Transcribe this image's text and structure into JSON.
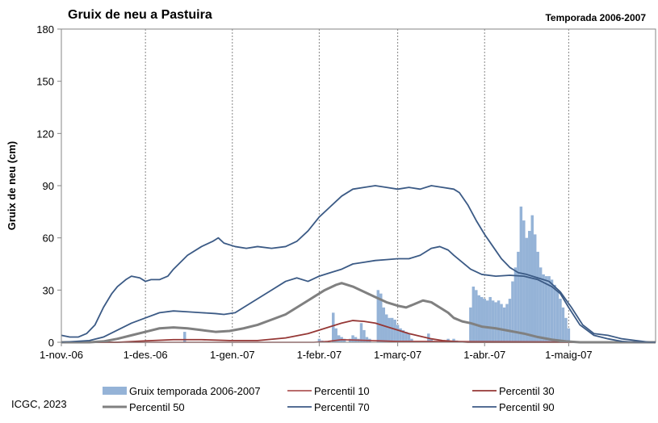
{
  "chart_data": {
    "type": "bar",
    "title": "Gruix de neu a Pastuira",
    "subtitle": "Temporada 2006-2007",
    "xlabel": "",
    "ylabel": "Gruix de neu (cm)",
    "ylim": [
      0,
      180
    ],
    "yticks": [
      "0",
      "30",
      "60",
      "90",
      "120",
      "150",
      "180"
    ],
    "x_days": 212,
    "x_ticks": [
      {
        "day": 0,
        "label": "1-nov.-06"
      },
      {
        "day": 30,
        "label": "1-des.-06"
      },
      {
        "day": 61,
        "label": "1-gen.-07"
      },
      {
        "day": 92,
        "label": "1-febr.-07"
      },
      {
        "day": 120,
        "label": "1-març-07"
      },
      {
        "day": 151,
        "label": "1-abr.-07"
      },
      {
        "day": 181,
        "label": "1-maig-07"
      }
    ],
    "grid": "vertical dotted",
    "legend_position": "bottom",
    "credit": "ICGC, 2023",
    "bars": {
      "name": "Gruix temporada 2006-2007",
      "color": "#95B3D7",
      "points": [
        [
          44,
          6
        ],
        [
          92,
          2
        ],
        [
          93,
          1
        ],
        [
          97,
          17
        ],
        [
          98,
          8
        ],
        [
          99,
          4
        ],
        [
          100,
          3
        ],
        [
          101,
          2
        ],
        [
          103,
          2
        ],
        [
          104,
          4
        ],
        [
          105,
          3
        ],
        [
          106,
          2
        ],
        [
          107,
          11
        ],
        [
          108,
          7
        ],
        [
          109,
          3
        ],
        [
          110,
          2
        ],
        [
          113,
          30
        ],
        [
          114,
          28
        ],
        [
          115,
          20
        ],
        [
          116,
          16
        ],
        [
          117,
          14
        ],
        [
          118,
          14
        ],
        [
          119,
          13
        ],
        [
          120,
          10
        ],
        [
          121,
          8
        ],
        [
          122,
          7
        ],
        [
          123,
          6
        ],
        [
          124,
          5
        ],
        [
          125,
          2
        ],
        [
          131,
          5
        ],
        [
          132,
          2
        ],
        [
          138,
          2
        ],
        [
          140,
          2
        ],
        [
          141,
          1
        ],
        [
          146,
          20
        ],
        [
          147,
          32
        ],
        [
          148,
          30
        ],
        [
          149,
          27
        ],
        [
          150,
          26
        ],
        [
          151,
          25
        ],
        [
          152,
          24
        ],
        [
          153,
          26
        ],
        [
          154,
          24
        ],
        [
          155,
          23
        ],
        [
          156,
          24
        ],
        [
          157,
          22
        ],
        [
          158,
          20
        ],
        [
          159,
          22
        ],
        [
          160,
          25
        ],
        [
          161,
          35
        ],
        [
          162,
          43
        ],
        [
          163,
          52
        ],
        [
          164,
          78
        ],
        [
          165,
          70
        ],
        [
          166,
          60
        ],
        [
          167,
          64
        ],
        [
          168,
          73
        ],
        [
          169,
          62
        ],
        [
          170,
          52
        ],
        [
          171,
          43
        ],
        [
          172,
          39
        ],
        [
          173,
          38
        ],
        [
          174,
          38
        ],
        [
          175,
          36
        ],
        [
          176,
          33
        ],
        [
          177,
          30
        ],
        [
          178,
          25
        ],
        [
          179,
          20
        ],
        [
          180,
          14
        ],
        [
          181,
          8
        ]
      ]
    },
    "series": [
      {
        "name": "Percentil 10",
        "color": "#A23B3B",
        "width": 1.6,
        "points": [
          [
            0,
            0
          ],
          [
            90,
            0
          ],
          [
            95,
            0.5
          ],
          [
            100,
            1.5
          ],
          [
            110,
            1
          ],
          [
            120,
            0.5
          ],
          [
            130,
            0.5
          ],
          [
            212,
            0
          ]
        ]
      },
      {
        "name": "Percentil 30",
        "color": "#953735",
        "width": 1.8,
        "points": [
          [
            0,
            0
          ],
          [
            20,
            0
          ],
          [
            30,
            0.8
          ],
          [
            40,
            1.5
          ],
          [
            50,
            1.5
          ],
          [
            60,
            1
          ],
          [
            70,
            1
          ],
          [
            80,
            2.5
          ],
          [
            88,
            5
          ],
          [
            94,
            8
          ],
          [
            100,
            11
          ],
          [
            104,
            12.5
          ],
          [
            108,
            12
          ],
          [
            112,
            11
          ],
          [
            116,
            9
          ],
          [
            120,
            7
          ],
          [
            124,
            5
          ],
          [
            128,
            3.5
          ],
          [
            132,
            2
          ],
          [
            136,
            1
          ],
          [
            140,
            0.5
          ],
          [
            145,
            0
          ],
          [
            212,
            0
          ]
        ]
      },
      {
        "name": "Percentil 50",
        "color": "#808080",
        "width": 3,
        "points": [
          [
            0,
            0
          ],
          [
            10,
            0
          ],
          [
            15,
            0.5
          ],
          [
            20,
            2
          ],
          [
            25,
            4
          ],
          [
            30,
            6
          ],
          [
            35,
            8
          ],
          [
            40,
            8.5
          ],
          [
            45,
            8
          ],
          [
            50,
            7
          ],
          [
            55,
            6
          ],
          [
            60,
            6.5
          ],
          [
            65,
            8
          ],
          [
            70,
            10
          ],
          [
            75,
            13
          ],
          [
            80,
            16
          ],
          [
            85,
            21
          ],
          [
            90,
            26
          ],
          [
            94,
            30
          ],
          [
            98,
            33
          ],
          [
            100,
            34
          ],
          [
            104,
            32
          ],
          [
            108,
            29
          ],
          [
            112,
            26
          ],
          [
            116,
            23
          ],
          [
            120,
            21
          ],
          [
            123,
            20
          ],
          [
            126,
            22
          ],
          [
            129,
            24
          ],
          [
            132,
            23
          ],
          [
            135,
            20
          ],
          [
            138,
            17
          ],
          [
            140,
            14
          ],
          [
            143,
            12
          ],
          [
            146,
            11
          ],
          [
            150,
            9
          ],
          [
            155,
            8
          ],
          [
            160,
            6.5
          ],
          [
            165,
            5
          ],
          [
            170,
            3
          ],
          [
            175,
            1.5
          ],
          [
            180,
            0.5
          ],
          [
            185,
            0
          ],
          [
            212,
            0
          ]
        ]
      },
      {
        "name": "Percentil 70",
        "color": "#3B5A85",
        "width": 1.8,
        "points": [
          [
            0,
            0
          ],
          [
            10,
            1
          ],
          [
            15,
            3
          ],
          [
            20,
            7
          ],
          [
            25,
            11
          ],
          [
            30,
            14
          ],
          [
            35,
            17
          ],
          [
            40,
            18
          ],
          [
            45,
            17.5
          ],
          [
            50,
            17
          ],
          [
            55,
            16.5
          ],
          [
            58,
            16
          ],
          [
            62,
            17
          ],
          [
            65,
            20
          ],
          [
            70,
            25
          ],
          [
            75,
            30
          ],
          [
            80,
            35
          ],
          [
            84,
            37
          ],
          [
            88,
            35
          ],
          [
            92,
            38
          ],
          [
            96,
            40
          ],
          [
            100,
            42
          ],
          [
            104,
            45
          ],
          [
            108,
            46
          ],
          [
            112,
            47
          ],
          [
            116,
            47.5
          ],
          [
            120,
            48
          ],
          [
            124,
            48
          ],
          [
            128,
            50
          ],
          [
            132,
            54
          ],
          [
            135,
            55
          ],
          [
            138,
            53
          ],
          [
            140,
            50
          ],
          [
            143,
            46
          ],
          [
            146,
            42
          ],
          [
            150,
            39
          ],
          [
            155,
            38
          ],
          [
            160,
            38.5
          ],
          [
            165,
            38
          ],
          [
            170,
            36
          ],
          [
            175,
            32
          ],
          [
            178,
            28
          ],
          [
            181,
            20
          ],
          [
            185,
            10
          ],
          [
            190,
            4
          ],
          [
            195,
            2
          ],
          [
            200,
            0.5
          ],
          [
            205,
            0
          ],
          [
            212,
            0
          ]
        ]
      },
      {
        "name": "Percentil 90",
        "color": "#3B5A85",
        "width": 1.8,
        "points": [
          [
            0,
            4
          ],
          [
            3,
            3
          ],
          [
            6,
            3
          ],
          [
            9,
            5
          ],
          [
            12,
            10
          ],
          [
            15,
            20
          ],
          [
            18,
            28
          ],
          [
            20,
            32
          ],
          [
            23,
            36
          ],
          [
            25,
            38
          ],
          [
            28,
            37
          ],
          [
            30,
            35
          ],
          [
            32,
            36
          ],
          [
            35,
            36
          ],
          [
            38,
            38
          ],
          [
            40,
            42
          ],
          [
            45,
            50
          ],
          [
            50,
            55
          ],
          [
            54,
            58
          ],
          [
            56,
            60
          ],
          [
            58,
            57
          ],
          [
            62,
            55
          ],
          [
            66,
            54
          ],
          [
            70,
            55
          ],
          [
            75,
            54
          ],
          [
            80,
            55
          ],
          [
            84,
            58
          ],
          [
            88,
            64
          ],
          [
            92,
            72
          ],
          [
            96,
            78
          ],
          [
            100,
            84
          ],
          [
            104,
            88
          ],
          [
            108,
            89
          ],
          [
            112,
            90
          ],
          [
            116,
            89
          ],
          [
            120,
            88
          ],
          [
            124,
            89
          ],
          [
            128,
            88
          ],
          [
            132,
            90
          ],
          [
            136,
            89
          ],
          [
            140,
            88
          ],
          [
            142,
            86
          ],
          [
            145,
            79
          ],
          [
            148,
            70
          ],
          [
            151,
            62
          ],
          [
            154,
            55
          ],
          [
            157,
            48
          ],
          [
            160,
            43
          ],
          [
            163,
            40
          ],
          [
            166,
            39
          ],
          [
            170,
            37
          ],
          [
            174,
            35
          ],
          [
            178,
            29
          ],
          [
            182,
            20
          ],
          [
            186,
            10
          ],
          [
            190,
            5
          ],
          [
            195,
            4
          ],
          [
            200,
            2
          ],
          [
            205,
            1
          ],
          [
            210,
            0
          ],
          [
            212,
            0
          ]
        ]
      }
    ]
  }
}
